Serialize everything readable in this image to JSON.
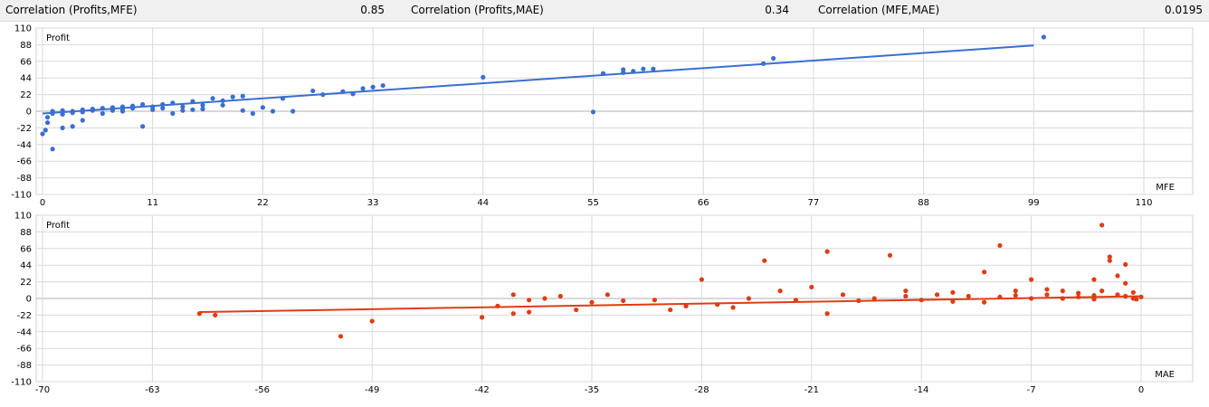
{
  "stats": [
    {
      "label": "Correlation (Profits,MFE)",
      "value": "0.85"
    },
    {
      "label": "Correlation (Profits,MAE)",
      "value": "0.34"
    },
    {
      "label": "Correlation (MFE,MAE)",
      "value": "0.0195"
    }
  ],
  "colors": {
    "mfe": "#3a6fd0",
    "mae": "#e03c14",
    "grid": "#d9d9d9",
    "zero_line": "#b0b0b0"
  },
  "chart_data": [
    {
      "type": "scatter",
      "title": "",
      "xlabel": "MFE",
      "ylabel": "Profit",
      "xlim": [
        0,
        114
      ],
      "ylim": [
        -110,
        110
      ],
      "xticks": [
        "0",
        "11",
        "22",
        "33",
        "44",
        "55",
        "66",
        "77",
        "88",
        "99",
        "110"
      ],
      "yticks": [
        "110",
        "88",
        "66",
        "44",
        "22",
        "0",
        "-22",
        "-44",
        "-66",
        "-88",
        "-110"
      ],
      "trend": [
        [
          0,
          -3
        ],
        [
          99,
          87
        ]
      ],
      "points": [
        [
          100,
          98
        ],
        [
          73,
          70
        ],
        [
          72,
          63
        ],
        [
          61,
          56
        ],
        [
          60,
          56
        ],
        [
          59,
          53
        ],
        [
          58,
          55
        ],
        [
          58,
          51
        ],
        [
          56,
          50
        ],
        [
          55,
          -1
        ],
        [
          44,
          45
        ],
        [
          34,
          34
        ],
        [
          33,
          32
        ],
        [
          32,
          30
        ],
        [
          31,
          23
        ],
        [
          30,
          26
        ],
        [
          28,
          22
        ],
        [
          27,
          27
        ],
        [
          25,
          0
        ],
        [
          24,
          17
        ],
        [
          23,
          0
        ],
        [
          21,
          -3
        ],
        [
          20,
          20
        ],
        [
          19,
          19
        ],
        [
          18,
          14
        ],
        [
          17,
          17
        ],
        [
          16,
          3
        ],
        [
          15,
          13
        ],
        [
          14,
          1
        ],
        [
          13,
          11
        ],
        [
          12,
          9
        ],
        [
          11,
          6
        ],
        [
          10,
          9
        ],
        [
          9,
          4
        ],
        [
          9,
          7
        ],
        [
          8,
          3
        ],
        [
          8,
          6
        ],
        [
          7,
          5
        ],
        [
          7,
          1
        ],
        [
          6,
          4
        ],
        [
          6,
          -3
        ],
        [
          5,
          3
        ],
        [
          5,
          1
        ],
        [
          4,
          2
        ],
        [
          4,
          -1
        ],
        [
          3,
          0
        ],
        [
          3,
          -2
        ],
        [
          2,
          1
        ],
        [
          2,
          -4
        ],
        [
          1,
          0
        ],
        [
          1,
          -3
        ],
        [
          0.5,
          -8
        ],
        [
          0.5,
          -15
        ],
        [
          0.3,
          -25
        ],
        [
          0,
          -30
        ],
        [
          1,
          -50
        ],
        [
          2,
          -22
        ],
        [
          3,
          -20
        ],
        [
          4,
          -12
        ],
        [
          10,
          -20
        ],
        [
          13,
          -3
        ],
        [
          15,
          2
        ],
        [
          20,
          1
        ],
        [
          18,
          8
        ],
        [
          22,
          5
        ],
        [
          12,
          4
        ],
        [
          11,
          2
        ],
        [
          14,
          6
        ],
        [
          16,
          8
        ],
        [
          8,
          0
        ]
      ]
    },
    {
      "type": "scatter",
      "title": "",
      "xlabel": "MAE",
      "ylabel": "Profit",
      "xlim": [
        -70,
        0
      ],
      "ylim": [
        -110,
        110
      ],
      "xticks": [
        "-70",
        "-63",
        "-56",
        "-49",
        "-42",
        "-35",
        "-28",
        "-21",
        "-14",
        "-7",
        "0"
      ],
      "yticks": [
        "110",
        "88",
        "66",
        "44",
        "22",
        "0",
        "-22",
        "-44",
        "-66",
        "-88",
        "-110"
      ],
      "trend": [
        [
          -60,
          -18
        ],
        [
          0,
          3
        ]
      ],
      "points": [
        [
          -60,
          -20
        ],
        [
          -59,
          -22
        ],
        [
          -51,
          -50
        ],
        [
          -49,
          -30
        ],
        [
          -42,
          -25
        ],
        [
          -41,
          -10
        ],
        [
          -40,
          5
        ],
        [
          -40,
          -20
        ],
        [
          -39,
          -18
        ],
        [
          -39,
          -2
        ],
        [
          -38,
          0
        ],
        [
          -37,
          3
        ],
        [
          -36,
          -15
        ],
        [
          -35,
          -5
        ],
        [
          -34,
          5
        ],
        [
          -31,
          -2
        ],
        [
          -30,
          -15
        ],
        [
          -29,
          -10
        ],
        [
          -28,
          25
        ],
        [
          -27,
          -8
        ],
        [
          -26,
          -12
        ],
        [
          -25,
          0
        ],
        [
          -24,
          50
        ],
        [
          -23,
          10
        ],
        [
          -21,
          15
        ],
        [
          -20,
          62
        ],
        [
          -20,
          -20
        ],
        [
          -19,
          5
        ],
        [
          -18,
          -3
        ],
        [
          -17,
          0
        ],
        [
          -16,
          57
        ],
        [
          -15,
          3
        ],
        [
          -14,
          -2
        ],
        [
          -13,
          5
        ],
        [
          -12,
          8
        ],
        [
          -11,
          3
        ],
        [
          -10,
          -5
        ],
        [
          -10,
          35
        ],
        [
          -9,
          70
        ],
        [
          -9,
          2
        ],
        [
          -8,
          10
        ],
        [
          -7,
          0
        ],
        [
          -7,
          25
        ],
        [
          -6,
          5
        ],
        [
          -5,
          10
        ],
        [
          -5,
          0
        ],
        [
          -4,
          7
        ],
        [
          -4,
          2
        ],
        [
          -3,
          4
        ],
        [
          -3,
          -1
        ],
        [
          -2.5,
          97
        ],
        [
          -2,
          55
        ],
        [
          -2,
          50
        ],
        [
          -1.5,
          30
        ],
        [
          -1.5,
          5
        ],
        [
          -1,
          45
        ],
        [
          -1,
          3
        ],
        [
          -0.5,
          8
        ],
        [
          -0.5,
          0
        ],
        [
          0,
          2
        ],
        [
          -3,
          25
        ],
        [
          -6,
          12
        ],
        [
          -8,
          4
        ],
        [
          -12,
          -4
        ],
        [
          -15,
          10
        ],
        [
          -22,
          -2
        ],
        [
          -33,
          -3
        ],
        [
          -2.5,
          10
        ],
        [
          -1,
          20
        ],
        [
          -0.3,
          -1
        ]
      ]
    }
  ]
}
